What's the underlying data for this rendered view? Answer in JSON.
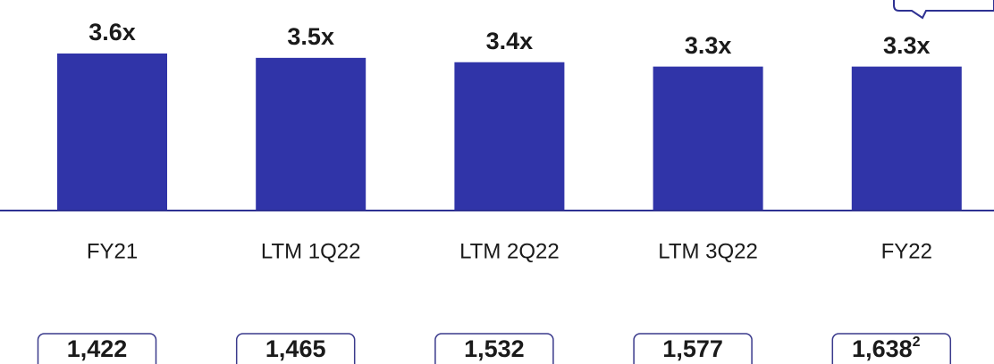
{
  "chart_data": {
    "type": "bar",
    "categories": [
      "FY21",
      "LTM 1Q22",
      "LTM 2Q22",
      "LTM 3Q22",
      "FY22"
    ],
    "values": [
      3.6,
      3.5,
      3.4,
      3.3,
      3.3
    ],
    "value_labels": [
      "3.6x",
      "3.5x",
      "3.4x",
      "3.3x",
      "3.3x"
    ],
    "color": "#3034a8",
    "ylim": [
      0,
      4
    ],
    "boxes": [
      {
        "label": "1,422"
      },
      {
        "label": "1,465"
      },
      {
        "label": "1,532"
      },
      {
        "label": "1,577"
      },
      {
        "label": "1,638",
        "superscript": "2"
      }
    ]
  }
}
